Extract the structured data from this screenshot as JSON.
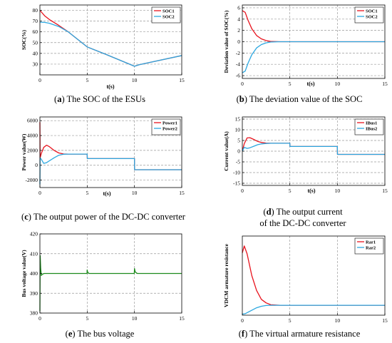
{
  "panels": [
    {
      "id": "a",
      "caption": {
        "tag": "a",
        "text": "The SOC of the ESUs"
      },
      "chart_data": {
        "type": "line",
        "ylabel": "SOC(%)",
        "xlabel": "t(s)",
        "xlim": [
          0,
          15
        ],
        "ylim": [
          20,
          85
        ],
        "xticks": [
          0,
          5,
          10,
          15
        ],
        "yticks": [
          30,
          40,
          50,
          60,
          70,
          80
        ],
        "grid": true,
        "legend_position": "top-right",
        "series": [
          {
            "name": "SOC1",
            "color": "#e8141e",
            "x": [
              0,
              0.5,
              1,
              2,
              3,
              5,
              7,
              10,
              10.5,
              15
            ],
            "y": [
              80,
              75,
              71.5,
              66,
              60,
              46,
              39,
              28,
              29.5,
              38
            ]
          },
          {
            "name": "SOC2",
            "color": "#2ba7e0",
            "x": [
              0,
              0.5,
              1,
              2,
              3,
              5,
              7,
              10,
              10.5,
              15
            ],
            "y": [
              69,
              68.8,
              68,
              65,
              60,
              46,
              39,
              28,
              29.5,
              38
            ]
          }
        ]
      }
    },
    {
      "id": "b",
      "caption": {
        "tag": "b",
        "text": "The deviation value of the SOC"
      },
      "chart_data": {
        "type": "line",
        "ylabel": "Deviation value of SOC(%)",
        "xlabel": "t(s)",
        "xlim": [
          0,
          15
        ],
        "ylim": [
          -6.5,
          6.5
        ],
        "xticks": [
          0,
          5,
          10,
          15
        ],
        "yticks": [
          -6,
          -4,
          -2,
          0,
          2,
          4,
          6
        ],
        "grid": true,
        "legend_position": "top-right",
        "series": [
          {
            "name": "SOC1",
            "color": "#e8141e",
            "x": [
              0,
              0.3,
              0.6,
              1,
              1.5,
              2,
              2.5,
              3,
              4,
              15
            ],
            "y": [
              5.5,
              5.2,
              3.8,
              2.3,
              1.1,
              0.5,
              0.2,
              0.05,
              0,
              0
            ]
          },
          {
            "name": "SOC2",
            "color": "#2ba7e0",
            "x": [
              0,
              0.3,
              0.6,
              1,
              1.5,
              2,
              2.5,
              3,
              4,
              15
            ],
            "y": [
              -5.5,
              -5.2,
              -3.8,
              -2.3,
              -1.1,
              -0.5,
              -0.2,
              -0.05,
              0,
              0
            ]
          }
        ]
      }
    },
    {
      "id": "c",
      "caption": {
        "tag": "c",
        "text": "The output power of the DC-DC converter"
      },
      "chart_data": {
        "type": "line",
        "ylabel": "Power value(W)",
        "xlabel": "t(s)",
        "xlim": [
          0,
          15
        ],
        "ylim": [
          -3000,
          6500
        ],
        "xticks": [
          0,
          5,
          10,
          15
        ],
        "yticks": [
          -2000,
          0,
          2000,
          4000,
          6000
        ],
        "grid": true,
        "legend_position": "top-right",
        "series": [
          {
            "name": "Power1",
            "color": "#e8141e",
            "x": [
              0,
              0.02,
              0.15,
              0.4,
              0.7,
              1,
              1.5,
              2,
              2.5,
              3,
              5,
              5.01,
              10,
              10.01,
              15
            ],
            "y": [
              5800,
              1000,
              1600,
              2400,
              2700,
              2500,
              2000,
              1650,
              1520,
              1500,
              1500,
              900,
              900,
              -600,
              -600
            ]
          },
          {
            "name": "Power2",
            "color": "#2ba7e0",
            "x": [
              0,
              0.02,
              0.15,
              0.4,
              0.7,
              1,
              1.5,
              2,
              2.5,
              3,
              5,
              5.01,
              10,
              10.01,
              15
            ],
            "y": [
              -2600,
              1000,
              800,
              250,
              350,
              600,
              1000,
              1350,
              1480,
              1500,
              1500,
              900,
              900,
              -600,
              -600
            ]
          }
        ]
      }
    },
    {
      "id": "d",
      "caption": {
        "tag": "d",
        "line1": "The output current",
        "line2": "of the DC-DC converter"
      },
      "chart_data": {
        "type": "line",
        "ylabel": "Current value(A)",
        "xlabel": "t(s)",
        "xlim": [
          0,
          15
        ],
        "ylim": [
          -16,
          16
        ],
        "xticks": [
          0,
          5,
          10,
          15
        ],
        "yticks": [
          -15,
          -10,
          -5,
          0,
          5,
          10,
          15
        ],
        "grid": true,
        "legend_position": "top-right",
        "series": [
          {
            "name": "IBus1",
            "color": "#e8141e",
            "x": [
              0,
              0.2,
              0.5,
              0.8,
              1.2,
              1.6,
              2,
              2.5,
              3,
              5,
              5.01,
              10,
              10.01,
              15
            ],
            "y": [
              0,
              3.5,
              6.2,
              6.3,
              5.5,
              4.6,
              4.1,
              3.8,
              3.7,
              3.7,
              2.2,
              2.2,
              -1.5,
              -1.5
            ]
          },
          {
            "name": "IBus2",
            "color": "#2ba7e0",
            "x": [
              0,
              0.2,
              0.5,
              0.8,
              1.2,
              1.6,
              2,
              2.5,
              3,
              5,
              5.01,
              10,
              10.01,
              15
            ],
            "y": [
              0,
              1.8,
              1.3,
              1.6,
              2.3,
              3.0,
              3.4,
              3.6,
              3.7,
              3.7,
              2.2,
              2.2,
              -1.5,
              -1.5
            ]
          }
        ]
      }
    },
    {
      "id": "e",
      "caption": {
        "tag": "e",
        "text": "The bus voltage"
      },
      "chart_data": {
        "type": "line",
        "ylabel": "Bus voltage value(V)",
        "xlabel": "",
        "xlim": [
          0,
          15
        ],
        "ylim": [
          380,
          420
        ],
        "xticks": [
          0,
          5,
          10,
          15
        ],
        "yticks": [
          380,
          390,
          400,
          410,
          420
        ],
        "grid": true,
        "series": [
          {
            "color": "#1e8c1e",
            "x": [
              0,
              0.03,
              0.08,
              0.15,
              0.25,
              0.45,
              1,
              4.98,
              5.0,
              5.05,
              5.2,
              9.98,
              10.0,
              10.08,
              10.3,
              15
            ],
            "y": [
              381,
              409,
              402.5,
              399,
              399.6,
              400,
              400,
              400,
              401.8,
              400.6,
              400,
              400,
              402.5,
              400.8,
              400,
              400
            ]
          }
        ]
      }
    },
    {
      "id": "f",
      "caption": {
        "tag": "f",
        "text": "The virtual armature resistance"
      },
      "chart_data": {
        "type": "line",
        "ylabel": "VDCM armature resistance",
        "xlabel": "",
        "xlim": [
          0,
          15
        ],
        "ylim": [
          0,
          8
        ],
        "xticks": [
          0,
          5,
          10,
          15
        ],
        "yticks": [],
        "grid": true,
        "legend_position": "top-right",
        "series": [
          {
            "name": "Rar1",
            "color": "#e8141e",
            "x": [
              0,
              0.2,
              0.5,
              1,
              1.5,
              2,
              2.5,
              3,
              4,
              15
            ],
            "y": [
              6.3,
              7.0,
              6.2,
              4.0,
              2.5,
              1.6,
              1.25,
              1.05,
              1,
              1
            ]
          },
          {
            "name": "Rar2",
            "color": "#2ba7e0",
            "x": [
              0,
              0.3,
              0.6,
              1,
              1.5,
              2,
              2.5,
              3,
              4,
              15
            ],
            "y": [
              0.1,
              0.15,
              0.3,
              0.5,
              0.75,
              0.9,
              0.98,
              1.0,
              1,
              1
            ]
          }
        ]
      }
    }
  ]
}
